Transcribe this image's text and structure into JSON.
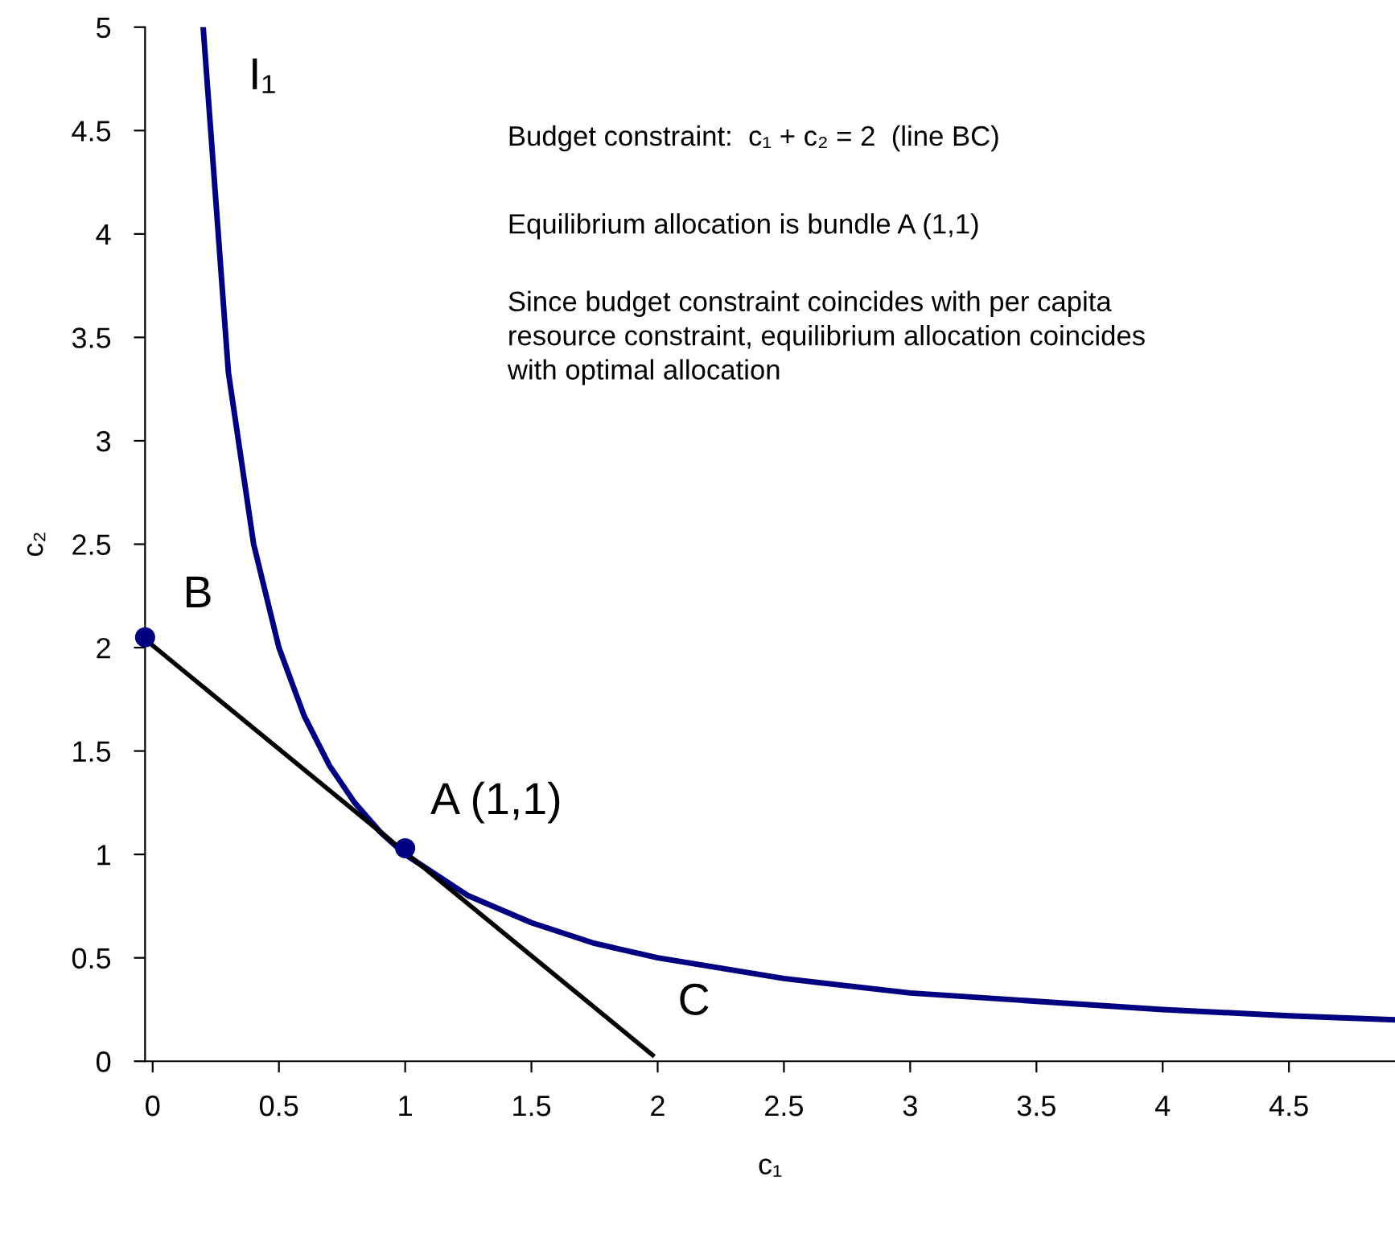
{
  "chart_data": {
    "type": "line",
    "xlabel": "c₁",
    "ylabel": "c₂",
    "xlim": [
      -0.03,
      4.92
    ],
    "ylim": [
      0,
      5
    ],
    "xticks": [
      0,
      0.5,
      1,
      1.5,
      2,
      2.5,
      3,
      3.5,
      4,
      4.5
    ],
    "yticks": [
      0,
      0.5,
      1,
      1.5,
      2,
      2.5,
      3,
      3.5,
      4,
      4.5,
      5
    ],
    "grid": false,
    "legend": false,
    "series": [
      {
        "name": "I₁",
        "color": "#000080",
        "x": [
          0.2,
          0.3,
          0.4,
          0.5,
          0.6,
          0.7,
          0.8,
          0.9,
          1,
          1.25,
          1.5,
          1.75,
          2,
          2.5,
          3,
          3.5,
          4,
          4.5,
          4.92
        ],
        "values": [
          5,
          3.33,
          2.5,
          2,
          1.67,
          1.43,
          1.25,
          1.11,
          1,
          0.8,
          0.67,
          0.57,
          0.5,
          0.4,
          0.33,
          0.29,
          0.25,
          0.22,
          0.2
        ]
      },
      {
        "color": "#000000",
        "x": [
          -0.03,
          1.98
        ],
        "values": [
          2.04,
          0.03
        ]
      },
      {
        "type": "scatter",
        "color": "#000080",
        "marker": "circle",
        "x": [
          -0.03,
          1
        ],
        "values": [
          2.05,
          1.03
        ]
      }
    ],
    "annotations": [
      {
        "text": "B",
        "x": -0.03,
        "y": 2.05
      },
      {
        "text": "A (1,1)",
        "x": 1,
        "y": 1.03
      },
      {
        "text": "C",
        "x": 1.98,
        "y": 0.03
      },
      "Budget constraint:  c₁ + c₂ = 2  (line BC)",
      "Equilibrium allocation is bundle A (1,1)",
      "Since budget constraint coincides with per capita\nresource constraint, equilibrium allocation coincides\nwith optimal allocation"
    ]
  }
}
